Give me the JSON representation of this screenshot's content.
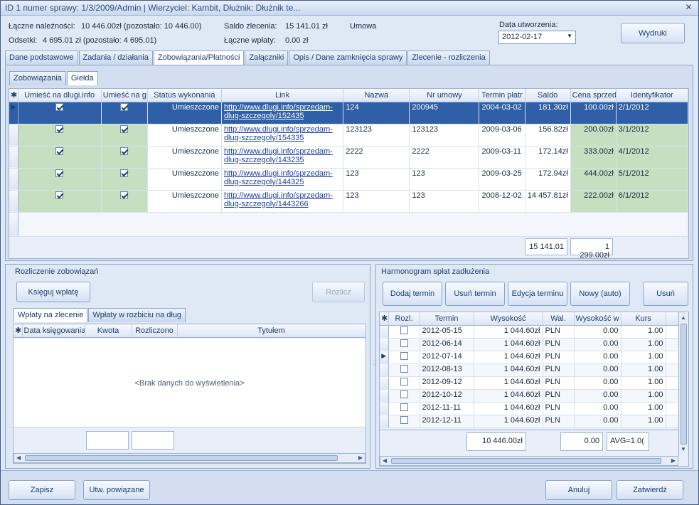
{
  "window": {
    "title": "ID 1  numer sprawy: 1/3/2009/Admin | Wierzyciel: Kambit, Dłużnik: Dłużnik te..."
  },
  "summary": {
    "total_label": "Łączne należności:",
    "total_value": "10 446.00zł (pozostało:   10 446.00)",
    "interest_label": "Odsetki:",
    "interest_value": "4 695.01 zł (pozostało:    4 695.01)",
    "order_balance_label": "Saldo zlecenia:",
    "order_balance_value": "15 141.01 zł",
    "payments_label": "Łączne wpłaty:",
    "payments_value": "0.00 zł",
    "contract_label": "Umowa",
    "date_label": "Data utworzenia:",
    "date_value": "2012-02-17",
    "print_button": "Wydruki"
  },
  "main_tabs": [
    "Dane podstawowe",
    "Zadania / działania",
    "Zobowiązania/Płatności",
    "Załączniki",
    "Opis / Dane zamknięcia sprawy",
    "Zlecenie - rozliczenia"
  ],
  "sub_tabs": [
    "Zobowiązania",
    "Giełda"
  ],
  "exchange_grid": {
    "columns": [
      "Umieść na dlugi.info",
      "Umieść na g",
      "Status wykonania",
      "Link",
      "Nazwa",
      "Nr umowy",
      "Termin płatr",
      "Saldo",
      "Cena sprzed",
      "Identyfikator"
    ],
    "rows": [
      {
        "c1": true,
        "c2": true,
        "status": "Umieszczone",
        "link": "http://www.dlugi.info/sprzedam-dlug-szczegoly/152435",
        "name": "124",
        "contract": "200945",
        "due": "2004-03-02",
        "balance": "181.30zł",
        "price": "100.00zł",
        "id": "2/1/2012"
      },
      {
        "c1": true,
        "c2": true,
        "status": "Umieszczone",
        "link": "http://www.dlugi.info/sprzedam-dlug-szczegoly/154335",
        "name": "123123",
        "contract": "123123",
        "due": "2009-03-06",
        "balance": "156.82zł",
        "price": "200.00zł",
        "id": "3/1/2012"
      },
      {
        "c1": true,
        "c2": true,
        "status": "Umieszczone",
        "link": "http://www.dlugi.info/sprzedam-dlug-szczegoly/143235",
        "name": "2222",
        "contract": "2222",
        "due": "2009-03-11",
        "balance": "172.14zł",
        "price": "333.00zł",
        "id": "4/1/2012"
      },
      {
        "c1": true,
        "c2": true,
        "status": "Umieszczone",
        "link": "http://www.dlugi.info/sprzedam-dlug-szczegoly/144325",
        "name": "123",
        "contract": "123",
        "due": "2009-03-25",
        "balance": "172.94zł",
        "price": "444.00zł",
        "id": "5/1/2012"
      },
      {
        "c1": true,
        "c2": true,
        "status": "Umieszczone",
        "link": "http://www.dlugi.info/sprzedam-dlug-szczegoly/1443266",
        "name": "123",
        "contract": "123",
        "due": "2008-12-02",
        "balance": "14 457.81zł",
        "price": "222.00zł",
        "id": "6/1/2012"
      }
    ],
    "sum_balance": "15 141.01",
    "sum_price": "1 299.00zł"
  },
  "settlement": {
    "title": "Rozliczenie zobowiązań",
    "book_button": "Księguj wpłatę",
    "settle_button": "Rozlicz",
    "tabs": [
      "Wpłaty na zlecenie",
      "Wpłaty w rozbiciu na dług"
    ],
    "columns": [
      "Data księgowania",
      "Kwota",
      "Rozliczono",
      "Tytułem"
    ],
    "empty": "<Brak danych do wyświetlenia>"
  },
  "schedule": {
    "title": "Harmonogram spłat zadłużenia",
    "buttons": [
      "Dodaj termin",
      "Usuń termin",
      "Edycja terminu",
      "Nowy (auto)",
      "Usuń"
    ],
    "columns": [
      "Rozl.",
      "Termin",
      "Wysokość",
      "Wal.",
      "Wysokość w",
      "Kurs"
    ],
    "rows": [
      {
        "date": "2012-05-15",
        "amount": "1 044.60zł",
        "cur": "PLN",
        "amount2": "0.00",
        "rate": "1.00"
      },
      {
        "date": "2012-06-14",
        "amount": "1 044.60zł",
        "cur": "PLN",
        "amount2": "0.00",
        "rate": "1.00"
      },
      {
        "date": "2012-07-14",
        "amount": "1 044.60zł",
        "cur": "PLN",
        "amount2": "0.00",
        "rate": "1.00"
      },
      {
        "date": "2012-08-13",
        "amount": "1 044.60zł",
        "cur": "PLN",
        "amount2": "0.00",
        "rate": "1.00"
      },
      {
        "date": "2012-09-12",
        "amount": "1 044.60zł",
        "cur": "PLN",
        "amount2": "0.00",
        "rate": "1.00"
      },
      {
        "date": "2012-10-12",
        "amount": "1 044.60zł",
        "cur": "PLN",
        "amount2": "0.00",
        "rate": "1.00"
      },
      {
        "date": "2012-11-11",
        "amount": "1 044.60zł",
        "cur": "PLN",
        "amount2": "0.00",
        "rate": "1.00"
      },
      {
        "date": "2012-12-11",
        "amount": "1 044.60zł",
        "cur": "PLN",
        "amount2": "0.00",
        "rate": "1.00"
      }
    ],
    "sum_amount": "10 446.00zł",
    "sum_amount2": "0.00",
    "sum_rate": "AVG=1.0("
  },
  "footer": {
    "save": "Zapisz",
    "related": "Utw. powiązane",
    "cancel": "Anuluj",
    "confirm": "Zatwierdź"
  }
}
